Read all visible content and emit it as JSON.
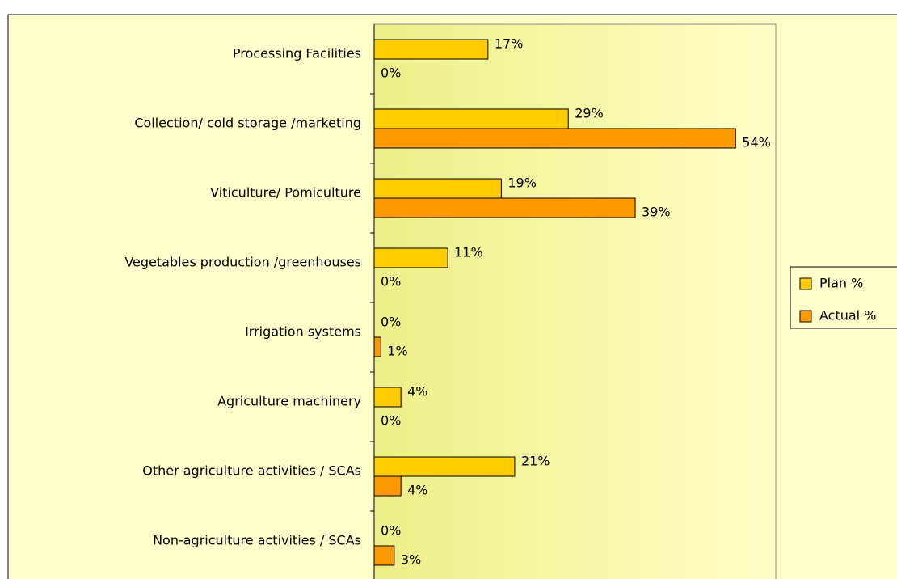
{
  "chart_data": {
    "type": "bar",
    "orientation": "horizontal",
    "categories": [
      "Processing Facilities",
      "Collection/ cold storage /marketing",
      "Viticulture/ Pomiculture",
      "Vegetables production /greenhouses",
      "Irrigation systems",
      "Agriculture machinery",
      "Other agriculture activities / SCAs",
      "Non-agriculture activities / SCAs"
    ],
    "series": [
      {
        "name": "Plan %",
        "color": "#ffcc00",
        "values": [
          17,
          29,
          19,
          11,
          0,
          4,
          21,
          0
        ],
        "value_labels": [
          "17%",
          "29%",
          "19%",
          "11%",
          "0%",
          "4%",
          "21%",
          "0%"
        ]
      },
      {
        "name": "Actual %",
        "color": "#ff9900",
        "values": [
          0,
          54,
          39,
          0,
          1,
          0,
          4,
          3
        ],
        "value_labels": [
          "0%",
          "54%",
          "39%",
          "0%",
          "1%",
          "0%",
          "4%",
          "3%"
        ]
      }
    ],
    "xlim": [
      0,
      60
    ],
    "legend": "right"
  }
}
